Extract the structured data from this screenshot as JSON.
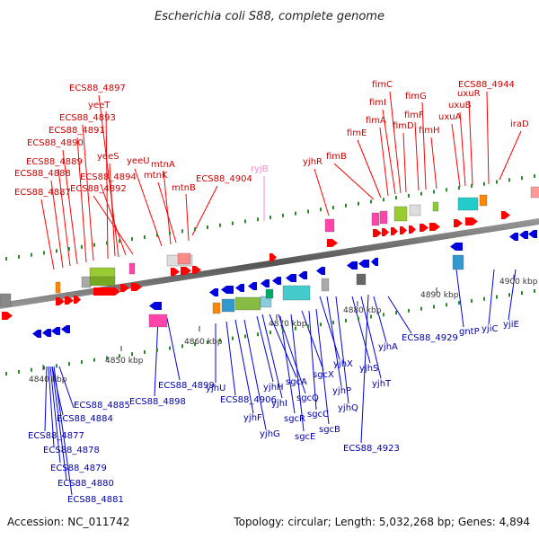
{
  "title": "Escherichia coli S88, complete genome",
  "footer": {
    "accession": "Accession: NC_011742",
    "summary": "Topology: circular; Length: 5,032,268 bp; Genes: 4,894"
  },
  "ticks": [
    {
      "label": "4840 kbp"
    },
    {
      "label": "4850 kbp"
    },
    {
      "label": "4860 kbp"
    },
    {
      "label": "4870 kbp"
    },
    {
      "label": "4880 kbp"
    },
    {
      "label": "4890 kbp"
    },
    {
      "label": "4900 kbp"
    }
  ],
  "top_labels": [
    {
      "text": "ECS88_4887"
    },
    {
      "text": "ECS88_4888"
    },
    {
      "text": "ECS88_4889"
    },
    {
      "text": "ECS88_4890"
    },
    {
      "text": "ECS88_4891"
    },
    {
      "text": "ECS88_4893"
    },
    {
      "text": "yeeT"
    },
    {
      "text": "ECS88_4897"
    },
    {
      "text": "yeeS"
    },
    {
      "text": "ECS88_4894"
    },
    {
      "text": "ECS88_4892"
    },
    {
      "text": "yeeU"
    },
    {
      "text": "mtnA"
    },
    {
      "text": "mtnK"
    },
    {
      "text": "mtnB"
    },
    {
      "text": "ECS88_4904"
    },
    {
      "text": "ryjB"
    },
    {
      "text": "yjhR"
    },
    {
      "text": "fimB"
    },
    {
      "text": "fimE"
    },
    {
      "text": "fimA"
    },
    {
      "text": "fimI"
    },
    {
      "text": "fimC"
    },
    {
      "text": "fimD"
    },
    {
      "text": "fimF"
    },
    {
      "text": "fimG"
    },
    {
      "text": "fimH"
    },
    {
      "text": "uxuA"
    },
    {
      "text": "uxuB"
    },
    {
      "text": "uxuR"
    },
    {
      "text": "ECS88_4944"
    },
    {
      "text": "iraD"
    }
  ],
  "bottom_labels": [
    {
      "text": "ECS88_4885"
    },
    {
      "text": "ECS88_4884"
    },
    {
      "text": "ECS88_4877"
    },
    {
      "text": "ECS88_4878"
    },
    {
      "text": "ECS88_4879"
    },
    {
      "text": "ECS88_4880"
    },
    {
      "text": "ECS88_4881"
    },
    {
      "text": "ECS88_4898"
    },
    {
      "text": "ECS88_4899"
    },
    {
      "text": "yjhU"
    },
    {
      "text": "ECS88_4906"
    },
    {
      "text": "yjhF"
    },
    {
      "text": "yjhG"
    },
    {
      "text": "yjhH"
    },
    {
      "text": "yjhI"
    },
    {
      "text": "sgcA"
    },
    {
      "text": "sgcQ"
    },
    {
      "text": "sgcR"
    },
    {
      "text": "sgcE"
    },
    {
      "text": "sgcX"
    },
    {
      "text": "sgcC"
    },
    {
      "text": "sgcB"
    },
    {
      "text": "yjhX"
    },
    {
      "text": "yjhP"
    },
    {
      "text": "yjhQ"
    },
    {
      "text": "yjhS"
    },
    {
      "text": "yjhT"
    },
    {
      "text": "yjhA"
    },
    {
      "text": "ECS88_4923"
    },
    {
      "text": "ECS88_4929"
    },
    {
      "text": "gntP"
    },
    {
      "text": "yjiC"
    },
    {
      "text": "yjiE"
    }
  ],
  "colors": {
    "forward": "#ff0000",
    "reverse": "#0000dd",
    "top_label": "#cc0000",
    "bottom_label": "#0000aa",
    "rna": "#ff88cc",
    "backbone": "#777777"
  }
}
